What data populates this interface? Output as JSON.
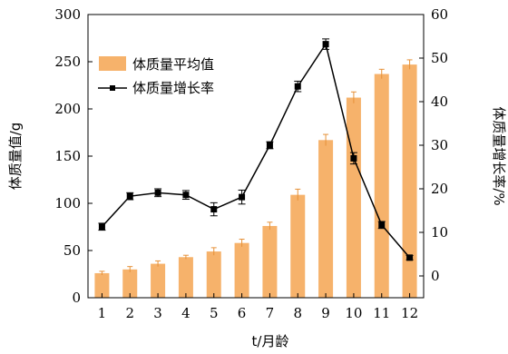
{
  "chart_data": {
    "type": "bar",
    "x": [
      "1",
      "2",
      "3",
      "4",
      "5",
      "6",
      "7",
      "8",
      "9",
      "10",
      "11",
      "12"
    ],
    "xlabel": "t/月龄",
    "ylabel_left": "体质量值/g",
    "ylabel_right": "体质量增长率/%",
    "ylim_left": [
      0,
      300
    ],
    "ylim_right": [
      -5,
      60
    ],
    "yticks_left": [
      0,
      50,
      100,
      150,
      200,
      250,
      300
    ],
    "yticks_right": [
      0,
      10,
      20,
      30,
      40,
      50,
      60
    ],
    "legend_position": "top-left",
    "series": [
      {
        "name": "体质量平均值",
        "type": "bar",
        "axis": "left",
        "color": "#F6B26B",
        "error_color": "#E69138",
        "values": [
          26,
          30,
          36,
          43,
          49,
          58,
          76,
          109,
          167,
          212,
          237,
          247
        ],
        "errors": [
          2,
          3,
          3,
          2,
          4,
          4,
          4,
          6,
          6,
          6,
          5,
          5
        ]
      },
      {
        "name": "体质量增长率",
        "type": "line",
        "axis": "right",
        "color": "#000000",
        "values": [
          11.3,
          18.3,
          19.1,
          18.6,
          15.3,
          18.1,
          30.0,
          43.5,
          53.2,
          27.0,
          11.7,
          4.2
        ],
        "errors": [
          0.8,
          0.8,
          0.9,
          1.0,
          1.5,
          1.6,
          0.8,
          1.2,
          1.2,
          1.3,
          0.8,
          0.5
        ]
      }
    ]
  }
}
